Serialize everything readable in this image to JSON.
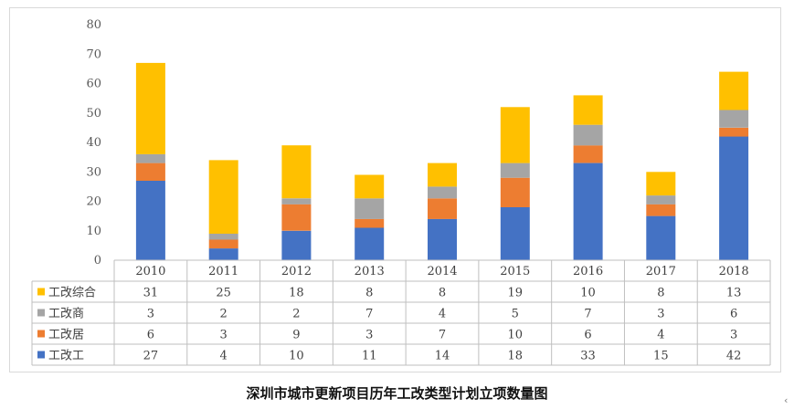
{
  "caption": "深圳市城市更新项目历年工改类型计划立项数量图",
  "corner_mark": "‹",
  "chart_data": {
    "type": "bar",
    "stacked": true,
    "categories": [
      "2010",
      "2011",
      "2012",
      "2013",
      "2014",
      "2015",
      "2016",
      "2017",
      "2018"
    ],
    "series": [
      {
        "name": "工改工",
        "color": "#4472C4",
        "values": [
          27,
          4,
          10,
          11,
          14,
          18,
          33,
          15,
          42
        ]
      },
      {
        "name": "工改居",
        "color": "#ED7D31",
        "values": [
          6,
          3,
          9,
          3,
          7,
          10,
          6,
          4,
          3
        ]
      },
      {
        "name": "工改商",
        "color": "#A5A5A5",
        "values": [
          3,
          2,
          2,
          7,
          4,
          5,
          7,
          3,
          6
        ]
      },
      {
        "name": "工改综合",
        "color": "#FFC000",
        "values": [
          31,
          25,
          18,
          8,
          8,
          19,
          10,
          8,
          13
        ]
      }
    ],
    "ylim": [
      0,
      80
    ],
    "yticks": [
      0,
      10,
      20,
      30,
      40,
      50,
      60,
      70,
      80
    ],
    "grid": false,
    "data_table": true,
    "title": "",
    "xlabel": "",
    "ylabel": ""
  }
}
